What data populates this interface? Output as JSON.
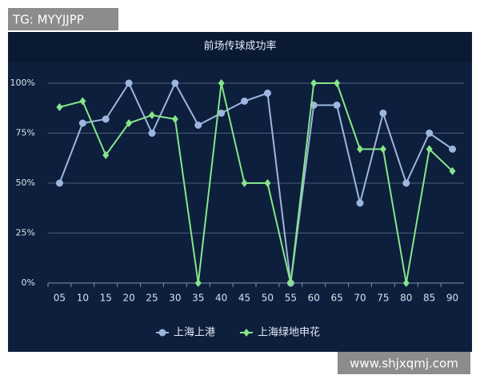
{
  "chart_data": {
    "type": "line",
    "title": "前场传球成功率",
    "categories": [
      "05",
      "10",
      "15",
      "20",
      "25",
      "30",
      "35",
      "40",
      "45",
      "50",
      "55",
      "60",
      "65",
      "70",
      "75",
      "80",
      "85",
      "90"
    ],
    "series": [
      {
        "name": "上海上港",
        "color": "#9db6df",
        "marker": "circle",
        "values": [
          50,
          80,
          82,
          100,
          75,
          100,
          79,
          85,
          91,
          95,
          0,
          89,
          89,
          40,
          85,
          50,
          75,
          67
        ]
      },
      {
        "name": "上海绿地申花",
        "color": "#86e58a",
        "marker": "diamond",
        "values": [
          88,
          91,
          64,
          80,
          84,
          82,
          0,
          100,
          50,
          50,
          0,
          100,
          100,
          67,
          67,
          0,
          67,
          56
        ]
      }
    ],
    "ylim": [
      0,
      100
    ],
    "yticks": [
      {
        "value": 0,
        "label": "0%"
      },
      {
        "value": 25,
        "label": "25%"
      },
      {
        "value": 50,
        "label": "50%"
      },
      {
        "value": 75,
        "label": "75%"
      },
      {
        "value": 100,
        "label": "100%"
      }
    ],
    "grid": true,
    "legend": "bottom"
  },
  "watermarks": [
    "TG: MYYJJPP",
    "www.shjxqmj.com"
  ]
}
